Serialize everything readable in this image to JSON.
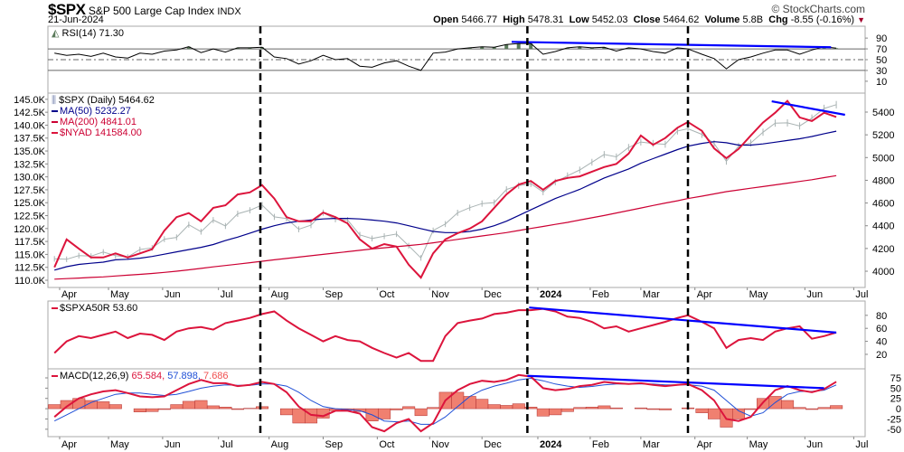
{
  "header": {
    "symbol": "$SPX",
    "name": "S&P 500 Large Cap Index",
    "exchange": "INDX",
    "date": "21-Jun-2024",
    "watermark": "© StockCharts.com",
    "open_label": "Open",
    "open": "5466.77",
    "high_label": "High",
    "high": "5478.31",
    "low_label": "Low",
    "low": "5452.03",
    "close_label": "Close",
    "close": "5464.62",
    "volume_label": "Volume",
    "volume": "5.8B",
    "chg_label": "Chg",
    "chg": "-8.55 (-0.16%)",
    "chg_icon": "down-triangle-icon"
  },
  "legends": {
    "rsi": "RSI(14) 71.30",
    "spx": "$SPX (Daily) 5464.62",
    "ma50": "MA(50) 5232.27",
    "ma200": "MA(200) 4841.01",
    "nyad": "$NYAD 141584.00",
    "a50r": "$SPXA50R 53.60",
    "macd": "MACD(12,26,9)",
    "macd_val": "65.584,",
    "signal_val": "57.898,",
    "hist_val": "7.686"
  },
  "colors": {
    "price": "#a9b3b3",
    "ma50": "#00008b",
    "ma200": "#cc0033",
    "nyad": "#dc143c",
    "trendline": "#0000ff",
    "rsi": "#000000",
    "overbought_fill": "#5a7a5a",
    "macd": "#dc143c",
    "signal": "#1f4fd6",
    "histogram": "#f08070"
  },
  "chart_data": [
    {
      "type": "line",
      "panel": "rsi",
      "title": "RSI(14)",
      "ylim": [
        -12,
        112
      ],
      "ticks": [
        "90",
        "70",
        "50",
        "30",
        "10"
      ],
      "tick_values": [
        90,
        70,
        50,
        30,
        10
      ],
      "reference_lines": [
        70,
        50,
        30
      ],
      "series": [
        {
          "name": "RSI(14)",
          "values": [
            62,
            58,
            60,
            56,
            62,
            55,
            53,
            62,
            60,
            66,
            68,
            74,
            63,
            70,
            64,
            72,
            72,
            73,
            55,
            52,
            42,
            48,
            58,
            50,
            52,
            38,
            36,
            44,
            48,
            38,
            30,
            62,
            64,
            70,
            72,
            74,
            73,
            78,
            80,
            80,
            60,
            65,
            72,
            74,
            72,
            73,
            66,
            72,
            70,
            65,
            62,
            72,
            70,
            60,
            52,
            33,
            50,
            55,
            62,
            68,
            68,
            60,
            68,
            74,
            71.3
          ]
        }
      ],
      "trendline": {
        "from": [
          "2023-12-18",
          83
        ],
        "to": [
          "2024-06-18",
          73
        ]
      }
    },
    {
      "type": "line",
      "panel": "price",
      "ylim": [
        3857,
        5567
      ],
      "right_ticks": [
        "5400",
        "5200",
        "5000",
        "4800",
        "4600",
        "4400",
        "4200",
        "4000"
      ],
      "right_tick_values": [
        5400,
        5200,
        5000,
        4800,
        4600,
        4400,
        4200,
        4000
      ],
      "left_ylim": [
        108.6,
        146.2
      ],
      "left_ticks": [
        "145.0K",
        "142.5K",
        "140.0K",
        "137.5K",
        "135.0K",
        "132.5K",
        "130.0K",
        "127.5K",
        "125.0K",
        "122.5K",
        "120.0K",
        "117.5K",
        "115.0K",
        "112.5K",
        "110.0K"
      ],
      "left_tick_values": [
        145,
        142.5,
        140,
        137.5,
        135,
        132.5,
        130,
        127.5,
        125,
        122.5,
        120,
        117.5,
        115,
        112.5,
        110
      ],
      "series": [
        {
          "name": "$SPX (Daily)",
          "values": [
            4109,
            4105,
            4137,
            4133,
            4169,
            4136,
            4124,
            4191,
            4205,
            4282,
            4298,
            4409,
            4348,
            4450,
            4398,
            4505,
            4536,
            4582,
            4478,
            4464,
            4369,
            4405,
            4515,
            4457,
            4450,
            4320,
            4288,
            4308,
            4327,
            4224,
            4117,
            4358,
            4415,
            4514,
            4559,
            4595,
            4604,
            4719,
            4754,
            4770,
            4697,
            4784,
            4840,
            4891,
            4959,
            5027,
            5006,
            5089,
            5137,
            5124,
            5117,
            5234,
            5254,
            5204,
            5123,
            4967,
            5100,
            5128,
            5223,
            5303,
            5305,
            5278,
            5347,
            5432,
            5465
          ]
        },
        {
          "name": "MA(50)",
          "values": [
            4010,
            4040,
            4060,
            4070,
            4080,
            4100,
            4105,
            4115,
            4130,
            4150,
            4170,
            4190,
            4210,
            4235,
            4270,
            4300,
            4335,
            4370,
            4400,
            4425,
            4440,
            4450,
            4460,
            4465,
            4465,
            4460,
            4450,
            4440,
            4425,
            4400,
            4375,
            4350,
            4340,
            4340,
            4350,
            4370,
            4400,
            4440,
            4490,
            4540,
            4590,
            4640,
            4680,
            4720,
            4770,
            4820,
            4860,
            4900,
            4950,
            4990,
            5030,
            5070,
            5100,
            5125,
            5140,
            5130,
            5110,
            5110,
            5120,
            5135,
            5150,
            5165,
            5185,
            5210,
            5232
          ]
        },
        {
          "name": "MA(200)",
          "values": [
            3930,
            3935,
            3940,
            3945,
            3950,
            3958,
            3965,
            3972,
            3980,
            3990,
            4000,
            4012,
            4025,
            4038,
            4050,
            4062,
            4075,
            4088,
            4100,
            4112,
            4124,
            4136,
            4148,
            4160,
            4172,
            4184,
            4196,
            4206,
            4216,
            4226,
            4236,
            4250,
            4265,
            4280,
            4295,
            4310,
            4325,
            4340,
            4358,
            4376,
            4394,
            4412,
            4430,
            4450,
            4470,
            4490,
            4512,
            4534,
            4556,
            4578,
            4600,
            4620,
            4640,
            4660,
            4680,
            4700,
            4715,
            4730,
            4745,
            4760,
            4775,
            4790,
            4805,
            4823,
            4841
          ]
        },
        {
          "name": "$NYAD",
          "axis": "left",
          "values": [
            112.5,
            117.9,
            116.1,
            114.4,
            114.4,
            115.2,
            114.4,
            115.2,
            116.0,
            119.6,
            122.2,
            123.0,
            121.4,
            124.0,
            124.5,
            126.6,
            127.0,
            128.4,
            125.8,
            122.2,
            121.4,
            121.4,
            123.1,
            122.2,
            121.0,
            117.9,
            116.1,
            117.0,
            116.5,
            113.0,
            110.5,
            115.2,
            117.9,
            119.1,
            120.0,
            121.4,
            124.0,
            126.6,
            128.5,
            129.2,
            127.5,
            129.2,
            129.8,
            130.1,
            131.0,
            131.9,
            132.5,
            134.5,
            138.0,
            136.2,
            137.5,
            139.5,
            140.6,
            138.9,
            135.5,
            133.6,
            135.4,
            138.0,
            140.5,
            142.4,
            144.7,
            141.5,
            140.8,
            142.4,
            141.584
          ]
        }
      ],
      "trendline": {
        "from": [
          "2024-05-15",
          5495
        ],
        "to": [
          "2024-06-26",
          5376
        ]
      }
    },
    {
      "type": "line",
      "panel": "a50r",
      "title": "$SPXA50R",
      "ylim": [
        -2.3,
        102
      ],
      "ticks": [
        "80",
        "60",
        "40",
        "20"
      ],
      "tick_values": [
        80,
        60,
        40,
        20
      ],
      "series": [
        {
          "name": "$SPXA50R",
          "values": [
            22,
            40,
            48,
            45,
            50,
            55,
            45,
            52,
            50,
            42,
            55,
            60,
            62,
            58,
            68,
            72,
            76,
            82,
            86,
            72,
            60,
            50,
            40,
            48,
            42,
            40,
            30,
            22,
            15,
            22,
            10,
            10,
            48,
            68,
            72,
            75,
            82,
            84,
            88,
            88,
            90,
            86,
            78,
            76,
            70,
            60,
            63,
            55,
            60,
            65,
            70,
            76,
            80,
            70,
            60,
            30,
            42,
            45,
            42,
            55,
            60,
            63,
            44,
            48,
            53.6
          ]
        }
      ],
      "trendline": {
        "from": [
          "2023-12-28",
          92
        ],
        "to": [
          "2024-06-21",
          53.5
        ]
      }
    },
    {
      "type": "line",
      "panel": "macd",
      "title": "MACD(12,26,9)",
      "ylim": [
        -68,
        97
      ],
      "ticks": [
        "75",
        "50",
        "25",
        "0",
        "-25",
        "-50"
      ],
      "tick_values": [
        75,
        50,
        25,
        0,
        -25,
        -50
      ],
      "series": [
        {
          "name": "MACD",
          "values": [
            -20,
            5,
            25,
            35,
            42,
            45,
            38,
            30,
            28,
            30,
            45,
            60,
            70,
            62,
            62,
            55,
            58,
            65,
            60,
            40,
            5,
            -15,
            -18,
            -5,
            -5,
            -12,
            -45,
            -55,
            -35,
            -25,
            -55,
            -35,
            20,
            45,
            60,
            68,
            65,
            70,
            82,
            78,
            50,
            45,
            48,
            55,
            58,
            65,
            62,
            60,
            62,
            58,
            55,
            58,
            60,
            45,
            20,
            -25,
            -30,
            -20,
            15,
            45,
            55,
            45,
            40,
            48,
            65.584
          ]
        },
        {
          "name": "Signal",
          "values": [
            -30,
            -15,
            0,
            15,
            25,
            35,
            38,
            38,
            35,
            32,
            35,
            42,
            50,
            55,
            58,
            57,
            57,
            60,
            60,
            55,
            40,
            20,
            5,
            0,
            -2,
            -5,
            -15,
            -30,
            -32,
            -30,
            -38,
            -38,
            -20,
            5,
            30,
            45,
            55,
            62,
            70,
            74,
            68,
            60,
            55,
            52,
            54,
            58,
            60,
            60,
            60,
            60,
            58,
            58,
            58,
            55,
            45,
            20,
            -5,
            -18,
            -10,
            15,
            35,
            42,
            42,
            45,
            57.898
          ]
        }
      ],
      "trendline": {
        "from": [
          "2023-12-27",
          80
        ],
        "to": [
          "2024-06-14",
          50
        ]
      }
    }
  ],
  "dates": [
    "2023-03-31",
    "2023-04-07",
    "2023-04-14",
    "2023-04-21",
    "2023-04-28",
    "2023-05-05",
    "2023-05-12",
    "2023-05-19",
    "2023-05-26",
    "2023-06-02",
    "2023-06-09",
    "2023-06-16",
    "2023-06-23",
    "2023-06-30",
    "2023-07-07",
    "2023-07-14",
    "2023-07-21",
    "2023-07-28",
    "2023-08-04",
    "2023-08-11",
    "2023-08-18",
    "2023-08-25",
    "2023-09-01",
    "2023-09-08",
    "2023-09-15",
    "2023-09-22",
    "2023-09-29",
    "2023-10-06",
    "2023-10-13",
    "2023-10-20",
    "2023-10-27",
    "2023-11-03",
    "2023-11-10",
    "2023-11-17",
    "2023-11-24",
    "2023-12-01",
    "2023-12-08",
    "2023-12-15",
    "2023-12-22",
    "2023-12-29",
    "2024-01-05",
    "2024-01-12",
    "2024-01-19",
    "2024-01-26",
    "2024-02-02",
    "2024-02-09",
    "2024-02-16",
    "2024-02-23",
    "2024-03-01",
    "2024-03-08",
    "2024-03-15",
    "2024-03-22",
    "2024-03-28",
    "2024-04-05",
    "2024-04-12",
    "2024-04-19",
    "2024-04-26",
    "2024-05-03",
    "2024-05-10",
    "2024-05-17",
    "2024-05-24",
    "2024-05-31",
    "2024-06-07",
    "2024-06-14",
    "2024-06-21"
  ],
  "x_axis": {
    "labels": [
      "Apr",
      "May",
      "Jun",
      "Jul",
      "Aug",
      "Sep",
      "Oct",
      "Nov",
      "Dec",
      "2024",
      "Feb",
      "Mar",
      "Apr",
      "May",
      "Jun",
      "Jul"
    ],
    "label_dates": [
      "2023-04-03",
      "2023-05-01",
      "2023-06-01",
      "2023-07-03",
      "2023-08-01",
      "2023-09-01",
      "2023-10-02",
      "2023-11-01",
      "2023-12-01",
      "2024-01-02",
      "2024-02-01",
      "2024-03-01",
      "2024-04-01",
      "2024-05-01",
      "2024-06-03",
      "2024-07-01"
    ]
  },
  "marker_dates": [
    "2023-07-27",
    "2023-12-27",
    "2024-03-28"
  ]
}
